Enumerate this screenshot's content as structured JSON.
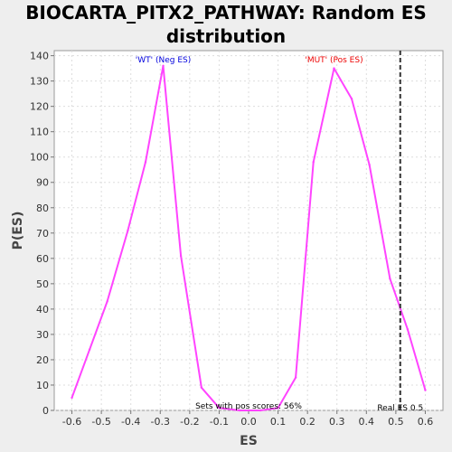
{
  "chart_data": {
    "type": "line",
    "title_line1": "BIOCARTA_PITX2_PATHWAY: Random ES",
    "title_line2": "distribution",
    "xlabel": "ES",
    "ylabel": "P(ES)",
    "xlim": [
      -0.66,
      0.66
    ],
    "ylim": [
      0,
      142
    ],
    "x_ticks": [
      "-0.6",
      "-0.5",
      "-0.4",
      "-0.3",
      "-0.2",
      "-0.1",
      "0.0",
      "0.1",
      "0.2",
      "0.3",
      "0.4",
      "0.5",
      "0.6"
    ],
    "y_ticks": [
      "0",
      "10",
      "20",
      "30",
      "40",
      "50",
      "60",
      "70",
      "80",
      "90",
      "100",
      "110",
      "120",
      "130",
      "140"
    ],
    "grid": true,
    "series": [
      {
        "color": "#ff44ff",
        "x": [
          -0.6,
          -0.54,
          -0.48,
          -0.41,
          -0.35,
          -0.29,
          -0.23,
          -0.16,
          -0.1,
          -0.03,
          0.04,
          0.1,
          0.16,
          0.22,
          0.29,
          0.35,
          0.41,
          0.48,
          0.54,
          0.6
        ],
        "y": [
          5,
          24,
          43,
          71,
          98,
          136,
          61,
          9,
          1,
          0,
          0,
          1,
          13,
          98,
          135,
          123,
          97,
          52,
          32,
          8
        ]
      }
    ],
    "annotations": {
      "wt_label": "'WT' (Neg ES)",
      "wt_color": "#0000dd",
      "mut_label": "'MUT' (Pos ES)",
      "mut_color": "#ee0000",
      "pos_scores": "Sets with pos scores: 56%",
      "real_es_label": "Real ES 0.5",
      "real_es": 0.515
    }
  }
}
